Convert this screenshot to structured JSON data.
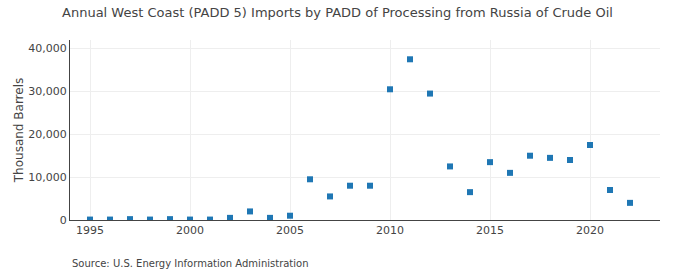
{
  "chart_data": {
    "type": "scatter",
    "title": "Annual West Coast (PADD 5) Imports by PADD of Processing from Russia of Crude Oil",
    "ylabel": "Thousand Barrels",
    "annotations": [
      "Source: U.S. Energy Information Administration"
    ],
    "x": [
      1995,
      1996,
      1997,
      1998,
      1999,
      2000,
      2001,
      2002,
      2003,
      2004,
      2005,
      2006,
      2007,
      2008,
      2009,
      2010,
      2011,
      2012,
      2013,
      2014,
      2015,
      2016,
      2017,
      2018,
      2019,
      2020,
      2021,
      2022
    ],
    "values": [
      100,
      100,
      200,
      100,
      200,
      100,
      100,
      500,
      2000,
      500,
      1000,
      9500,
      5500,
      8000,
      8000,
      30500,
      37500,
      29500,
      12500,
      6500,
      13500,
      11000,
      15000,
      14500,
      14000,
      17500,
      7000,
      4000
    ],
    "marker": "square",
    "xlim": [
      1994,
      2023.5
    ],
    "xticks": [
      1995,
      2000,
      2005,
      2010,
      2015,
      2020
    ],
    "ylim": [
      0,
      42000
    ],
    "yticks": [
      0,
      {
        "value": 10000,
        "label": "10,000"
      },
      {
        "value": 20000,
        "label": "20,000"
      },
      {
        "value": 30000,
        "label": "30,000"
      },
      {
        "value": 40000,
        "label": "40,000"
      }
    ],
    "grid": true
  }
}
